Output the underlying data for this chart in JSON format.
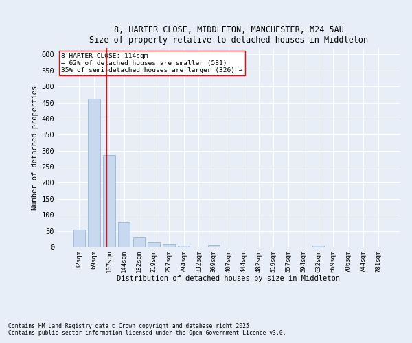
{
  "title_line1": "8, HARTER CLOSE, MIDDLETON, MANCHESTER, M24 5AU",
  "title_line2": "Size of property relative to detached houses in Middleton",
  "xlabel": "Distribution of detached houses by size in Middleton",
  "ylabel": "Number of detached properties",
  "bar_color": "#c8d8ee",
  "bar_edge_color": "#8aadd4",
  "background_color": "#e8eef8",
  "fig_background_color": "#e8eef8",
  "grid_color": "#ffffff",
  "categories": [
    "32sqm",
    "69sqm",
    "107sqm",
    "144sqm",
    "182sqm",
    "219sqm",
    "257sqm",
    "294sqm",
    "332sqm",
    "369sqm",
    "407sqm",
    "444sqm",
    "482sqm",
    "519sqm",
    "557sqm",
    "594sqm",
    "632sqm",
    "669sqm",
    "706sqm",
    "744sqm",
    "781sqm"
  ],
  "values": [
    53,
    462,
    287,
    76,
    31,
    16,
    8,
    5,
    0,
    6,
    0,
    0,
    0,
    0,
    0,
    0,
    5,
    0,
    0,
    0,
    0
  ],
  "ylim": [
    0,
    620
  ],
  "yticks": [
    0,
    50,
    100,
    150,
    200,
    250,
    300,
    350,
    400,
    450,
    500,
    550,
    600
  ],
  "property_label": "8 HARTER CLOSE: 114sqm",
  "pct_smaller": "62% of detached houses are smaller (581)",
  "pct_larger": "35% of semi-detached houses are larger (326)",
  "red_line_x": 1.8,
  "footnote_line1": "Contains HM Land Registry data © Crown copyright and database right 2025.",
  "footnote_line2": "Contains public sector information licensed under the Open Government Licence v3.0."
}
